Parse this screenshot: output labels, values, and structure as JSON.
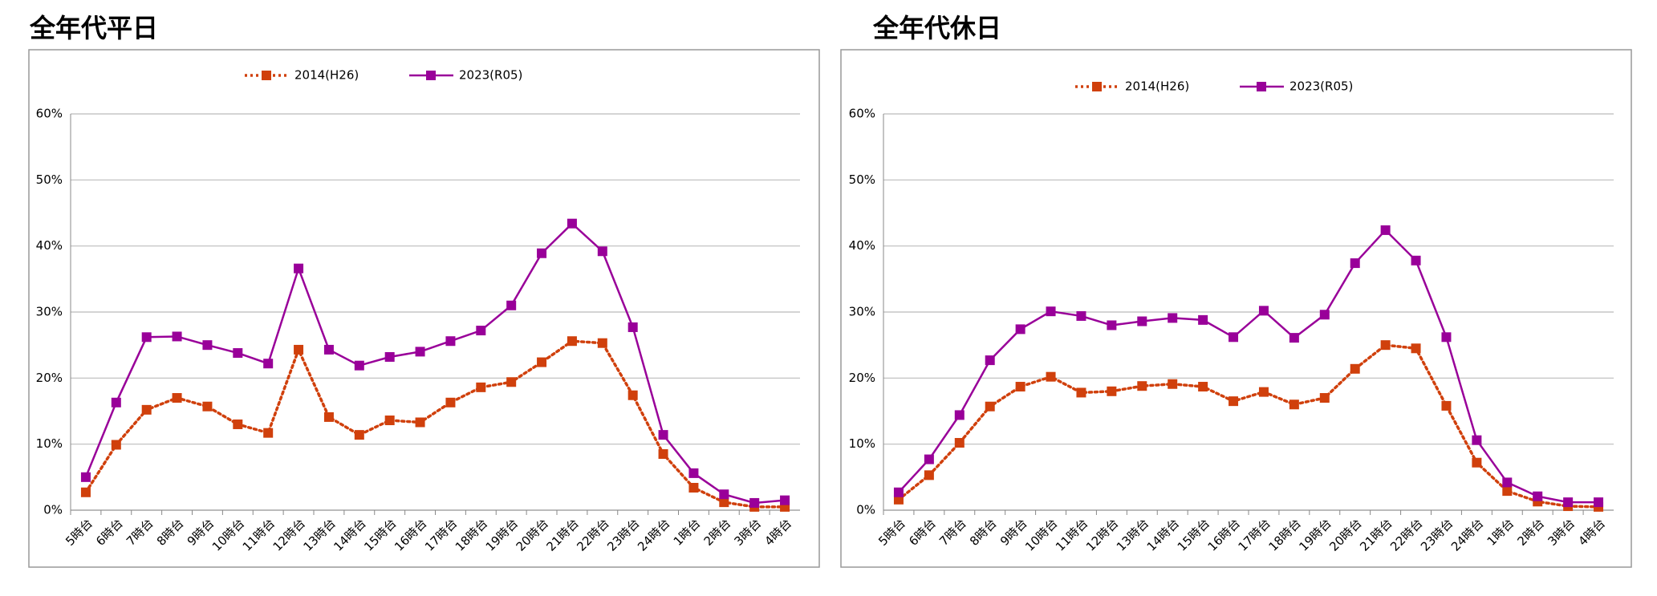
{
  "chart_data": [
    {
      "type": "line",
      "title": "全年代平日",
      "categories": [
        "5時台",
        "6時台",
        "7時台",
        "8時台",
        "9時台",
        "10時台",
        "11時台",
        "12時台",
        "13時台",
        "14時台",
        "15時台",
        "16時台",
        "17時台",
        "18時台",
        "19時台",
        "20時台",
        "21時台",
        "22時台",
        "23時台",
        "24時台",
        "1時台",
        "2時台",
        "3時台",
        "4時台"
      ],
      "series": [
        {
          "name": "2014(H26)",
          "color": "#d0400c",
          "line_style": "dotted",
          "values": [
            2.7,
            9.9,
            15.2,
            17,
            15.7,
            13,
            11.7,
            24.3,
            14.1,
            11.4,
            13.6,
            13.3,
            16.3,
            18.6,
            19.4,
            22.4,
            25.6,
            25.3,
            17.4,
            8.5,
            3.4,
            1.2,
            0.5,
            0.5
          ]
        },
        {
          "name": "2023(R05)",
          "color": "#990099",
          "line_style": "solid",
          "values": [
            5,
            16.3,
            26.2,
            26.3,
            25,
            23.8,
            22.2,
            36.6,
            24.3,
            21.9,
            23.2,
            24,
            25.6,
            27.2,
            31,
            38.9,
            43.4,
            39.2,
            27.7,
            11.4,
            5.6,
            2.4,
            1.1,
            1.5
          ]
        }
      ],
      "ylim": [
        0,
        60
      ],
      "yticks": [
        {
          "value": 0,
          "label": "0%"
        },
        {
          "value": 10,
          "label": "10%"
        },
        {
          "value": 20,
          "label": "20%"
        },
        {
          "value": 30,
          "label": "30%"
        },
        {
          "value": 40,
          "label": "40%"
        },
        {
          "value": 50,
          "label": "50%"
        },
        {
          "value": 60,
          "label": "60%"
        }
      ],
      "grid": true,
      "legend": "top"
    },
    {
      "type": "line",
      "title": "全年代休日",
      "categories": [
        "5時台",
        "6時台",
        "7時台",
        "8時台",
        "9時台",
        "10時台",
        "11時台",
        "12時台",
        "13時台",
        "14時台",
        "15時台",
        "16時台",
        "17時台",
        "18時台",
        "19時台",
        "20時台",
        "21時台",
        "22時台",
        "23時台",
        "24時台",
        "1時台",
        "2時台",
        "3時台",
        "4時台"
      ],
      "series": [
        {
          "name": "2014(H26)",
          "color": "#d0400c",
          "line_style": "dotted",
          "values": [
            1.6,
            5.3,
            10.2,
            15.7,
            18.7,
            20.2,
            17.8,
            18,
            18.8,
            19.1,
            18.7,
            16.5,
            17.9,
            16,
            17,
            21.4,
            25,
            24.5,
            15.8,
            7.2,
            2.9,
            1.3,
            0.6,
            0.5
          ]
        },
        {
          "name": "2023(R05)",
          "color": "#990099",
          "line_style": "solid",
          "values": [
            2.7,
            7.7,
            14.4,
            22.7,
            27.4,
            30.1,
            29.4,
            28,
            28.6,
            29.1,
            28.8,
            26.2,
            30.2,
            26.1,
            29.6,
            37.4,
            42.4,
            37.8,
            26.2,
            10.6,
            4.2,
            2.1,
            1.2,
            1.2
          ]
        }
      ],
      "ylim": [
        0,
        60
      ],
      "yticks": [
        {
          "value": 0,
          "label": "0%"
        },
        {
          "value": 10,
          "label": "10%"
        },
        {
          "value": 20,
          "label": "20%"
        },
        {
          "value": 30,
          "label": "30%"
        },
        {
          "value": 40,
          "label": "40%"
        },
        {
          "value": 50,
          "label": "50%"
        },
        {
          "value": 60,
          "label": "60%"
        }
      ],
      "grid": true,
      "legend": "top"
    }
  ]
}
